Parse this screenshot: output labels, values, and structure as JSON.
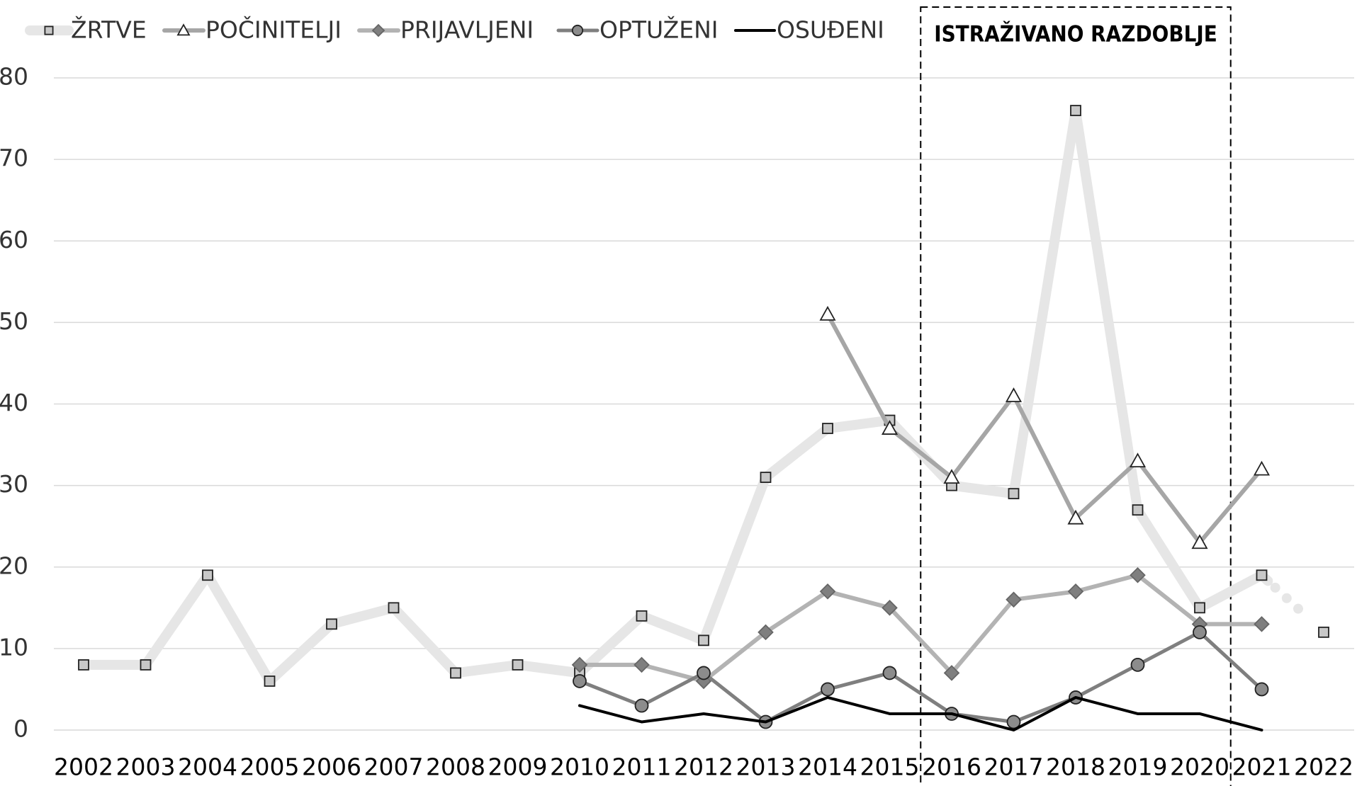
{
  "chart_data": {
    "type": "line",
    "categories": [
      "2002",
      "2003",
      "2004",
      "2005",
      "2006",
      "2007",
      "2008",
      "2009",
      "2010",
      "2011",
      "2012",
      "2013",
      "2014",
      "2015",
      "2016",
      "2017",
      "2018",
      "2019",
      "2020",
      "2021",
      "2022"
    ],
    "ylim": [
      0,
      80
    ],
    "yticks": [
      0,
      10,
      20,
      30,
      40,
      50,
      60,
      70,
      80
    ],
    "grid": true,
    "legend": "top",
    "annotation": {
      "text": "ISTRAŽIVANO RAZDOBLJE",
      "span": [
        "2016",
        "2020"
      ]
    },
    "series": [
      {
        "name": "ŽRTVE",
        "color": "#e6e6e6",
        "marker": "square",
        "marker_color": "#c8c8c8",
        "projected_from": "2021",
        "values": [
          8,
          8,
          19,
          6,
          13,
          15,
          7,
          8,
          7,
          14,
          11,
          31,
          37,
          38,
          30,
          29,
          76,
          27,
          15,
          19,
          12
        ]
      },
      {
        "name": "POČINITELJI",
        "color": "#a6a6a6",
        "marker": "triangle",
        "marker_color": "#ffffff",
        "values": [
          null,
          null,
          null,
          null,
          null,
          null,
          null,
          null,
          null,
          null,
          null,
          null,
          51,
          37,
          31,
          41,
          26,
          33,
          23,
          32,
          null
        ]
      },
      {
        "name": "PRIJAVLJENI",
        "color": "#b3b3b3",
        "marker": "diamond",
        "marker_color": "#7f7f7f",
        "values": [
          null,
          null,
          null,
          null,
          null,
          null,
          null,
          null,
          8,
          8,
          6,
          12,
          17,
          15,
          7,
          16,
          17,
          19,
          13,
          13,
          null
        ]
      },
      {
        "name": "OPTUŽENI",
        "color": "#7f7f7f",
        "marker": "circle",
        "marker_color": "#8c8c8c",
        "values": [
          null,
          null,
          null,
          null,
          null,
          null,
          null,
          null,
          6,
          3,
          7,
          1,
          5,
          7,
          2,
          1,
          4,
          8,
          12,
          5,
          null
        ]
      },
      {
        "name": "OSUĐENI",
        "color": "#000000",
        "marker": "none",
        "values": [
          null,
          null,
          null,
          null,
          null,
          null,
          null,
          null,
          3,
          1,
          2,
          1,
          4,
          2,
          2,
          0,
          4,
          2,
          2,
          0,
          null
        ]
      }
    ]
  }
}
